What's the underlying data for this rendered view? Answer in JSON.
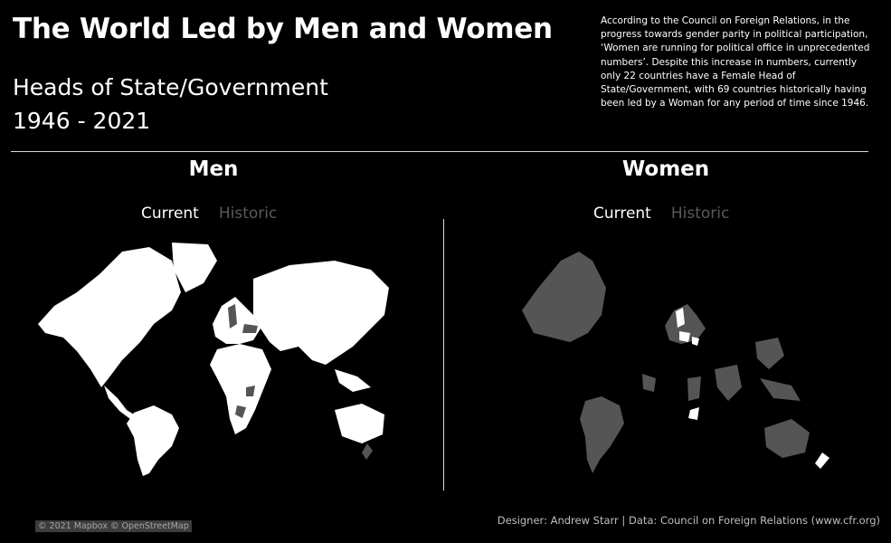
{
  "header": {
    "title": "The World Led by Men and Women",
    "subtitle_line1": "Heads of State/Government",
    "subtitle_line2": "1946 - 2021",
    "description": "According to the Council on Foreign Relations, in the progress  towards gender parity in political participation, ‘Women are running for political office in unprecedented numbers’.  Despite this increase in numbers, currently only 22 countries have a Female Head of State/Government, with 69 countries historically having been led by a Woman for any period of time since 1946."
  },
  "panels": {
    "men": {
      "title": "Men",
      "toggle_current": "Current",
      "toggle_historic": "Historic",
      "selected": "Current"
    },
    "women": {
      "title": "Women",
      "toggle_current": "Current",
      "toggle_historic": "Historic",
      "selected": "Current"
    }
  },
  "map_legend": {
    "highlight_color": "#ffffff",
    "other_color": "#555555",
    "background_color": "#000000"
  },
  "footer": {
    "attribution": "© 2021 Mapbox © OpenStreetMap",
    "credits": "Designer: Andrew Starr  |  Data: Council on Foreign Relations (www.cfr.org)"
  }
}
